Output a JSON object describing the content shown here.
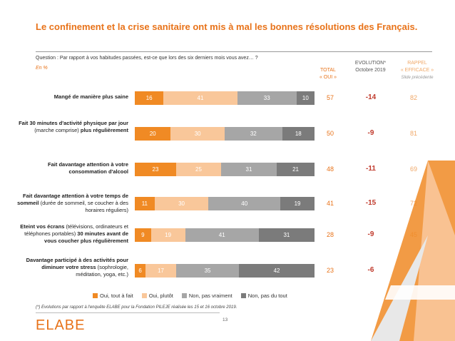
{
  "title": "Le confinement et la crise sanitaire ont mis à mal les bonnes résolutions des Français.",
  "question": "Question : Par rapport à vos habitudes passées, est-ce que lors des six derniers mois vous avez… ?",
  "unit": "En  %",
  "columns": {
    "total_l1": "TOTAL",
    "total_l2": "« OUI »",
    "evo_l1": "EVOLUTION*",
    "evo_l2": "Octobre 2019",
    "rappel_l1": "RAPPEL",
    "rappel_l2": "« EFFICACE »",
    "rappel_l3": "Slide précédente"
  },
  "colors": {
    "oui_tout_a_fait": "#f08a24",
    "oui_plutot": "#f9c79a",
    "non_pas_vraiment": "#a6a6a6",
    "non_pas_du_tout": "#7b7b7b",
    "accent": "#e8731a"
  },
  "chart_data": {
    "type": "bar",
    "orientation": "horizontal",
    "stacked": true,
    "categories": [
      "Mangé de manière plus saine",
      "Fait 30 minutes d'activité physique par jour (marche comprise) plus régulièrement",
      "Fait davantage attention à votre consommation d'alcool",
      "Fait davantage attention à votre temps de sommeil (durée de sommeil, se coucher à des horaires réguliers)",
      "Eteint vos écrans (télévisions, ordinateurs et téléphones portables) 30 minutes avant de vous coucher plus régulièrement",
      "Davantage participé à des activités pour diminuer votre stress (sophrologie, méditation, yoga, etc.)"
    ],
    "series": [
      {
        "name": "Oui, tout à fait",
        "values": [
          16,
          20,
          23,
          11,
          9,
          6
        ]
      },
      {
        "name": "Oui, plutôt",
        "values": [
          41,
          30,
          25,
          30,
          19,
          17
        ]
      },
      {
        "name": "Non, pas vraiment",
        "values": [
          33,
          32,
          31,
          40,
          41,
          35
        ]
      },
      {
        "name": "Non, pas du tout",
        "values": [
          10,
          18,
          21,
          19,
          31,
          42
        ]
      }
    ],
    "total_oui": [
      57,
      50,
      48,
      41,
      28,
      23
    ],
    "evolution": [
      "-14",
      "-9",
      "-11",
      "-15",
      "-9",
      "-6"
    ],
    "rappel_efficace": [
      82,
      81,
      69,
      72,
      45,
      55
    ]
  },
  "rows": [
    {
      "label_bold": "Mangé de manière plus saine",
      "label_normal": "",
      "label_bold2": ""
    },
    {
      "label_bold": "Fait 30 minutes d'activité physique par jour",
      "label_normal": " (marche comprise) ",
      "label_bold2": "plus régulièrement"
    },
    {
      "label_bold": "Fait davantage attention à votre consommation d'alcool",
      "label_normal": "",
      "label_bold2": ""
    },
    {
      "label_bold": "Fait davantage attention à votre temps de sommeil",
      "label_normal": " (durée de sommeil, se coucher à des horaires réguliers)",
      "label_bold2": ""
    },
    {
      "label_bold": "Eteint vos écrans",
      "label_normal": " (télévisions, ordinateurs et téléphones portables) ",
      "label_bold2": "30 minutes avant de vous coucher plus régulièrement"
    },
    {
      "label_bold": "Davantage participé à des activités pour diminuer votre stress",
      "label_normal": " (sophrologie, méditation, yoga, etc.)",
      "label_bold2": ""
    }
  ],
  "footnote": "(*) Evolutions par rapport à l'enquête ELABE pour la Fondation PILEJE réalisée les 15 et 16 octobre 2019.",
  "page_number": "13",
  "logo_text": "ELABE"
}
